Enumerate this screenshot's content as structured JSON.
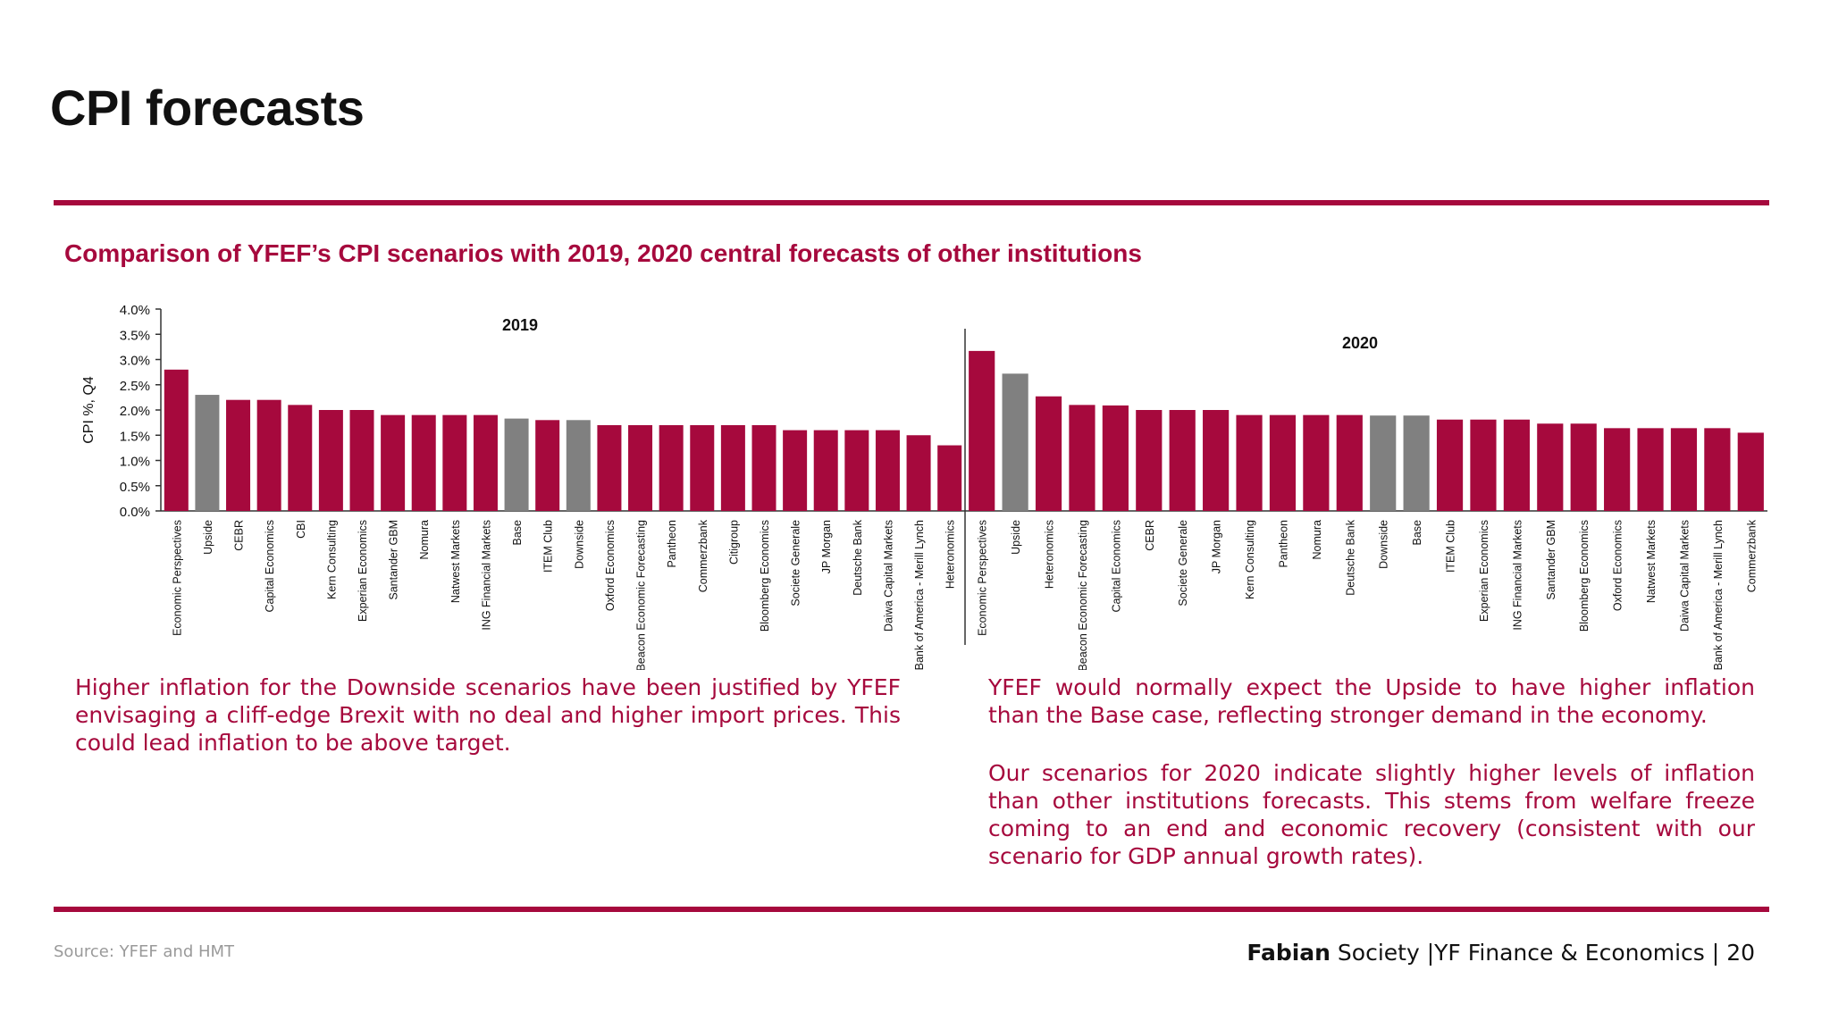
{
  "page": {
    "title": "CPI forecasts",
    "subtitle": "Comparison of YFEF’s CPI scenarios with 2019, 2020 central forecasts of other institutions",
    "source": "Source: YFEF and HMT",
    "footer": {
      "brand": "Fabian",
      "org": "Society",
      "sep1": "|",
      "dept": "YF Finance & Economics",
      "sep2": "|",
      "page_number": "20"
    },
    "notes": {
      "left": "Higher inflation for the Downside scenarios have been justified by YFEF envisaging a cliff-edge Brexit with no deal and higher import prices. This could lead inflation to be above target.",
      "right_1": "YFEF would normally expect the Upside to have higher inflation than the Base case, reflecting stronger demand in the economy.",
      "right_2": "Our scenarios for 2020 indicate slightly higher levels of inflation than other institutions forecasts. This stems from welfare freeze coming to an end and economic recovery (consistent with our scenario for GDP annual growth rates)."
    }
  },
  "colors": {
    "accent": "#a6093d",
    "institution_bar": "#a6093d",
    "scenario_bar": "#808080",
    "axis": "#333333",
    "text": "#111111"
  },
  "chart_data": {
    "type": "bar",
    "ylabel": "CPI %, Q4",
    "ylim": [
      0,
      4.0
    ],
    "yticks": [
      "0.0%",
      "0.5%",
      "1.0%",
      "1.5%",
      "2.0%",
      "2.5%",
      "3.0%",
      "3.5%",
      "4.0%"
    ],
    "panels": [
      {
        "label": "2019",
        "categories": [
          "Economic Perspectives",
          "Upside",
          "CEBR",
          "Capital Economics",
          "CBI",
          "Kern Consulting",
          "Experian Economics",
          "Santander GBM",
          "Nomura",
          "Natwest Markets",
          "ING Financial Markets",
          "Base",
          "ITEM Club",
          "Downside",
          "Oxford Economics",
          "Beacon Economic Forecasting",
          "Pantheon",
          "Commerzbank",
          "Citigroup",
          "Bloomberg Economics",
          "Societe Generale",
          "JP Morgan",
          "Deutsche Bank",
          "Daiwa Capital Markets",
          "Bank of America - Merill Lynch",
          "Heteronomics"
        ],
        "values": [
          2.8,
          2.3,
          2.2,
          2.2,
          2.1,
          2.0,
          2.0,
          1.9,
          1.9,
          1.9,
          1.9,
          1.83,
          1.8,
          1.8,
          1.7,
          1.7,
          1.7,
          1.7,
          1.7,
          1.7,
          1.6,
          1.6,
          1.6,
          1.6,
          1.5,
          1.3
        ],
        "scenario": [
          false,
          true,
          false,
          false,
          false,
          false,
          false,
          false,
          false,
          false,
          false,
          true,
          false,
          true,
          false,
          false,
          false,
          false,
          false,
          false,
          false,
          false,
          false,
          false,
          false,
          false
        ]
      },
      {
        "label": "2020",
        "categories": [
          "Economic Perspectives",
          "Upside",
          "Heteronomics",
          "Beacon Economic Forecasting",
          "Capital Economics",
          "CEBR",
          "Societe Generale",
          "JP Morgan",
          "Kern Consulting",
          "Pantheon",
          "Nomura",
          "Deutsche Bank",
          "Downside",
          "Base",
          "ITEM Club",
          "Experian Economics",
          "ING Financial Markets",
          "Santander GBM",
          "Bloomberg Economics",
          "Oxford Economics",
          "Natwest Markets",
          "Daiwa Capital Markets",
          "Bank of America - Merill Lynch",
          "Commerzbank"
        ],
        "values": [
          3.17,
          2.72,
          2.27,
          2.1,
          2.09,
          2.0,
          2.0,
          2.0,
          1.9,
          1.9,
          1.9,
          1.9,
          1.89,
          1.89,
          1.81,
          1.81,
          1.81,
          1.73,
          1.73,
          1.64,
          1.64,
          1.64,
          1.64,
          1.55
        ],
        "scenario": [
          false,
          true,
          false,
          false,
          false,
          false,
          false,
          false,
          false,
          false,
          false,
          false,
          true,
          true,
          false,
          false,
          false,
          false,
          false,
          false,
          false,
          false,
          false,
          false
        ]
      }
    ]
  }
}
